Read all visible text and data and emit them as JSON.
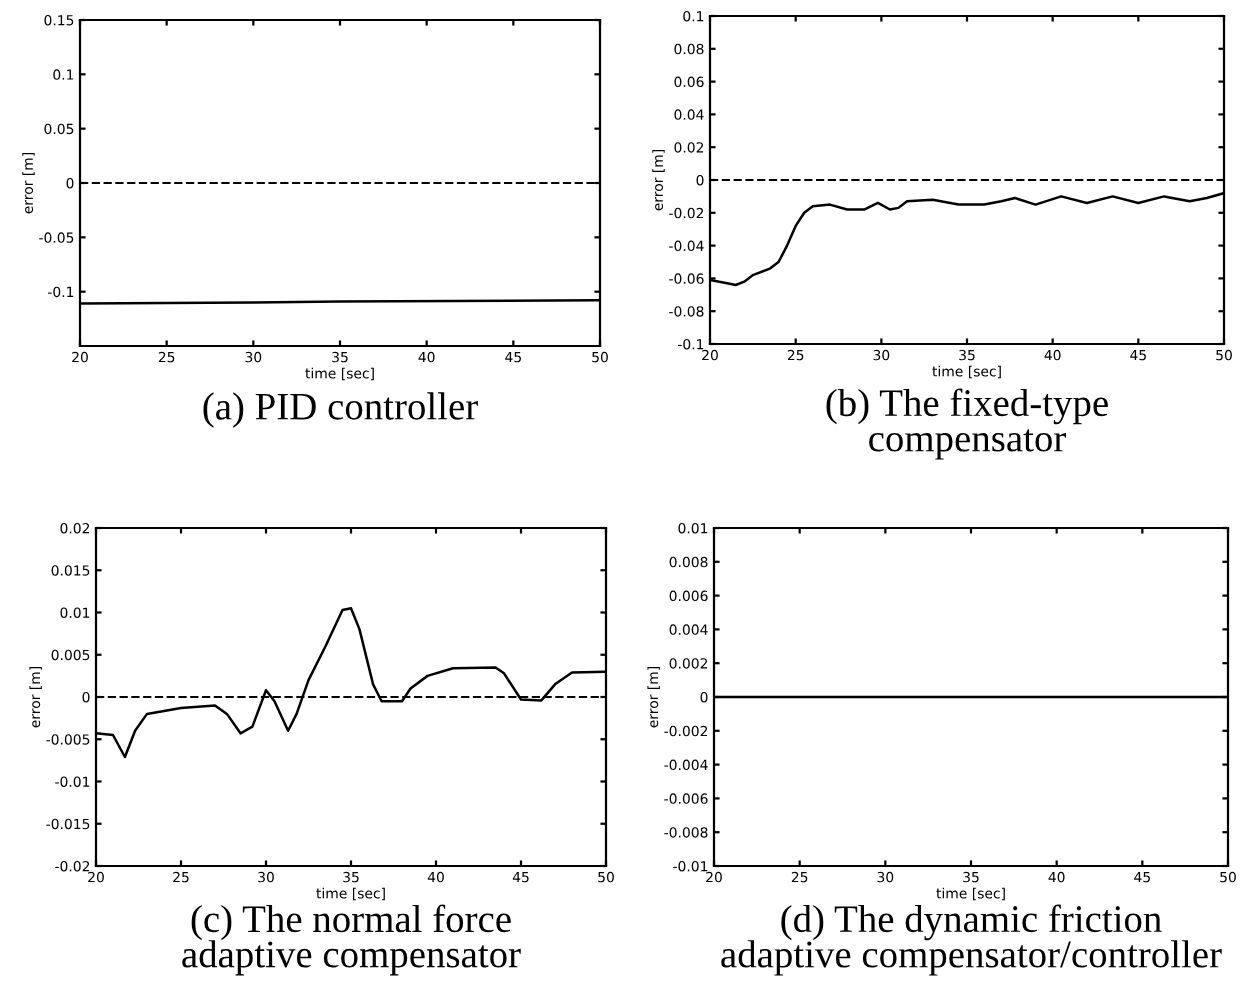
{
  "chart_data": [
    {
      "type": "line",
      "xlabel": "time [sec]",
      "ylabel": "error [m]",
      "annotations": [
        "(a) PID controller"
      ],
      "x": [
        20,
        30,
        35,
        50
      ],
      "series": [
        {
          "color": "#000000",
          "values": [
            -0.111,
            -0.11,
            -0.109,
            -0.108
          ]
        }
      ],
      "xlim": [
        20,
        50
      ],
      "xticks": [
        20,
        25,
        30,
        35,
        40,
        45,
        50
      ],
      "ylim": [
        -0.15,
        0.15
      ],
      "yticks": [
        -0.1,
        -0.05,
        0,
        0.05,
        0.1,
        0.15
      ],
      "ref_lines": [
        {
          "axis": "y",
          "value": 0,
          "color": "#000000",
          "line_style": "dashed"
        }
      ],
      "grid": false,
      "legend": false
    },
    {
      "type": "line",
      "xlabel": "time [sec]",
      "ylabel": "error [m]",
      "annotations": [
        "(b) The fixed-type\ncompensator"
      ],
      "x": [
        20,
        21,
        21.5,
        22,
        22.5,
        23.5,
        24,
        24.5,
        25,
        25.5,
        26,
        27,
        28,
        29,
        29.8,
        30.5,
        31,
        31.5,
        33,
        34.5,
        36,
        37,
        37.8,
        39,
        40.5,
        42,
        43.5,
        45,
        46.5,
        48,
        49,
        50
      ],
      "series": [
        {
          "color": "#000000",
          "values": [
            -0.061,
            -0.063,
            -0.064,
            -0.062,
            -0.058,
            -0.054,
            -0.05,
            -0.04,
            -0.028,
            -0.02,
            -0.016,
            -0.015,
            -0.018,
            -0.018,
            -0.014,
            -0.018,
            -0.017,
            -0.013,
            -0.012,
            -0.015,
            -0.015,
            -0.013,
            -0.011,
            -0.015,
            -0.01,
            -0.014,
            -0.01,
            -0.014,
            -0.01,
            -0.013,
            -0.011,
            -0.008
          ]
        }
      ],
      "xlim": [
        20,
        50
      ],
      "xticks": [
        20,
        25,
        30,
        35,
        40,
        45,
        50
      ],
      "ylim": [
        -0.1,
        0.1
      ],
      "yticks": [
        -0.1,
        -0.08,
        -0.06,
        -0.04,
        -0.02,
        0,
        0.02,
        0.04,
        0.06,
        0.08,
        0.1
      ],
      "ref_lines": [
        {
          "axis": "y",
          "value": 0,
          "color": "#000000",
          "line_style": "dashed"
        }
      ],
      "grid": false,
      "legend": false
    },
    {
      "type": "line",
      "xlabel": "time [sec]",
      "ylabel": "error [m]",
      "annotations": [
        "(c) The normal force\nadaptive compensator"
      ],
      "x": [
        20,
        21,
        21.7,
        22.3,
        23,
        25,
        27,
        27.7,
        28.5,
        29.2,
        30,
        30.5,
        31.3,
        31.8,
        32.5,
        33.5,
        34.5,
        35,
        35.5,
        36.3,
        36.8,
        38,
        38.5,
        39.5,
        41,
        43.5,
        44,
        45,
        46.2,
        47,
        48,
        50
      ],
      "series": [
        {
          "color": "#000000",
          "values": [
            -0.0043,
            -0.0045,
            -0.0071,
            -0.004,
            -0.002,
            -0.0013,
            -0.001,
            -0.002,
            -0.0043,
            -0.0035,
            0.0008,
            -0.0005,
            -0.004,
            -0.002,
            0.002,
            0.006,
            0.0103,
            0.0105,
            0.008,
            0.0015,
            -0.0005,
            -0.0005,
            0.001,
            0.0025,
            0.0034,
            0.0035,
            0.0028,
            -0.0003,
            -0.0004,
            0.0015,
            0.0029,
            0.003
          ]
        }
      ],
      "xlim": [
        20,
        50
      ],
      "xticks": [
        20,
        25,
        30,
        35,
        40,
        45,
        50
      ],
      "ylim": [
        -0.02,
        0.02
      ],
      "yticks": [
        -0.02,
        -0.015,
        -0.01,
        -0.005,
        0,
        0.005,
        0.01,
        0.015,
        0.02
      ],
      "ref_lines": [
        {
          "axis": "y",
          "value": 0,
          "color": "#000000",
          "line_style": "dashed"
        }
      ],
      "grid": false,
      "legend": false
    },
    {
      "type": "line",
      "xlabel": "time [sec]",
      "ylabel": "error [m]",
      "annotations": [
        "(d) The dynamic friction\nadaptive compensator/controller"
      ],
      "x": [
        20,
        50
      ],
      "series": [
        {
          "color": "#000000",
          "values": [
            0,
            0
          ]
        }
      ],
      "xlim": [
        20,
        50
      ],
      "xticks": [
        20,
        25,
        30,
        35,
        40,
        45,
        50
      ],
      "ylim": [
        -0.01,
        0.01
      ],
      "yticks": [
        -0.01,
        -0.008,
        -0.006,
        -0.004,
        -0.002,
        0,
        0.002,
        0.004,
        0.006,
        0.008,
        0.01
      ],
      "grid": false,
      "legend": false
    }
  ]
}
